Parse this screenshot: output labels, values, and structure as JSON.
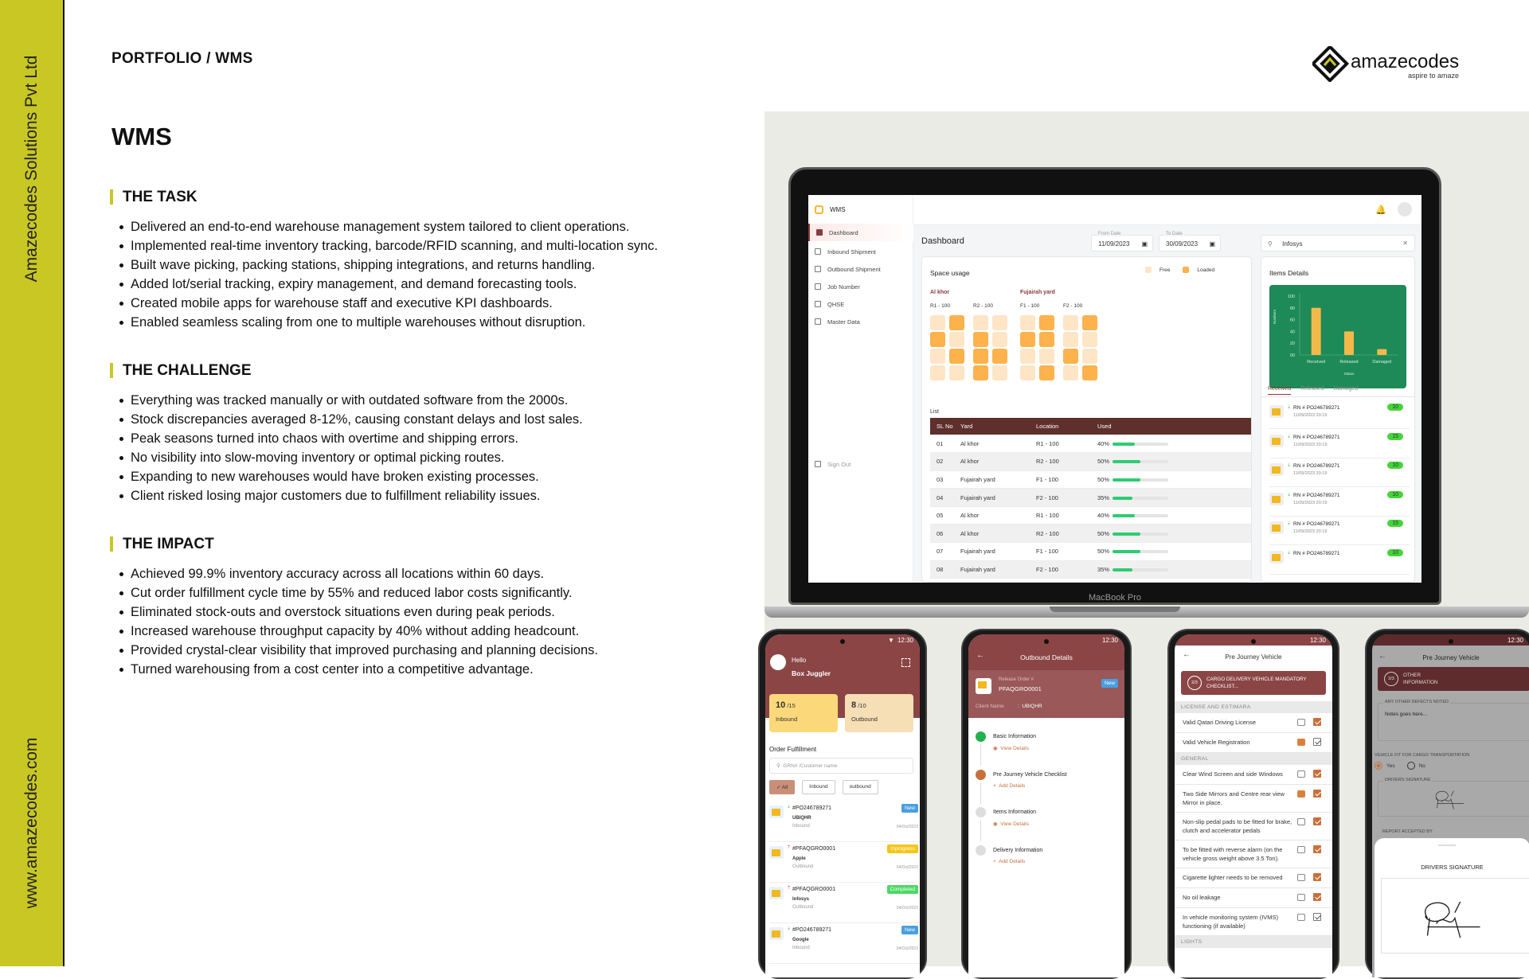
{
  "brand_side": {
    "company": "Amazecodes Solutions Pvt Ltd",
    "website": "www.amazecodes.com",
    "color": "#c8c723"
  },
  "breadcrumb": "PORTFOLIO / WMS",
  "title": "WMS",
  "logo": {
    "name": "amazecodes",
    "tagline": "aspire to amaze"
  },
  "sections": [
    {
      "heading": "THE TASK",
      "items": [
        "Delivered an end-to-end warehouse management system tailored to client operations.",
        "Implemented real-time inventory tracking, barcode/RFID scanning, and multi-location sync.",
        "Built wave picking, packing stations, shipping integrations, and returns handling.",
        "Added lot/serial tracking, expiry management, and demand forecasting tools.",
        "Created mobile apps for warehouse staff and executive KPI dashboards.",
        "Enabled seamless scaling from one to multiple warehouses without disruption."
      ]
    },
    {
      "heading": "THE CHALLENGE",
      "items": [
        "Everything was tracked manually or with outdated software from the 2000s.",
        "Stock discrepancies averaged 8-12%, causing constant delays and lost sales.",
        "Peak seasons turned into chaos with overtime and shipping errors.",
        "No visibility into slow-moving inventory or optimal picking routes.",
        "Expanding to new warehouses would have broken existing processes.",
        "Client risked losing major customers due to fulfillment reliability issues."
      ]
    },
    {
      "heading": "THE IMPACT",
      "items": [
        "Achieved 99.9% inventory accuracy across all locations within 60 days.",
        "Cut order fulfillment cycle time by 55% and reduced labor costs significantly.",
        "Eliminated stock-outs and overstock situations even during peak periods.",
        "Increased warehouse throughput capacity by 40% without adding headcount.",
        "Provided crystal-clear visibility that improved purchasing and planning decisions.",
        "Turned warehousing from a cost center into a competitive advantage."
      ]
    }
  ],
  "laptop_label": "MacBook Pro",
  "dashboard": {
    "app_name": "WMS",
    "nav": [
      {
        "label": "Dashboard",
        "icon": "dashboard-icon",
        "active": true
      },
      {
        "label": "Inbound Shipment",
        "icon": "inbound-icon"
      },
      {
        "label": "Outbound Shipment",
        "icon": "outbound-icon"
      },
      {
        "label": "Job Number",
        "icon": "briefcase-icon"
      },
      {
        "label": "QHSE",
        "icon": "grid-icon"
      },
      {
        "label": "Master Data",
        "icon": "database-icon"
      }
    ],
    "sign_out": "Sign Out",
    "heading": "Dashboard",
    "from_date": {
      "label": "From Date",
      "value": "11/09/2023"
    },
    "to_date": {
      "label": "To Date",
      "value": "30/09/2023"
    },
    "search_value": "Infosys",
    "space_usage": {
      "title": "Space usage",
      "legend": [
        "Free",
        "Loaded"
      ],
      "colors": {
        "free": "#fde5c6",
        "loaded": "#fdb24b"
      },
      "yards": [
        {
          "name": "Al khor",
          "groups": [
            {
              "label": "R1 - 100",
              "cells": [
                0,
                1,
                1,
                0,
                0,
                1,
                0,
                0
              ]
            },
            {
              "label": "R2 - 100",
              "cells": [
                0,
                0,
                1,
                0,
                1,
                1,
                1,
                0
              ]
            }
          ]
        },
        {
          "name": "Fujairah yard",
          "groups": [
            {
              "label": "F1 - 100",
              "cells": [
                0,
                1,
                1,
                1,
                0,
                0,
                0,
                1
              ]
            },
            {
              "label": "F2 - 100",
              "cells": [
                0,
                1,
                0,
                0,
                1,
                0,
                0,
                1
              ]
            }
          ]
        }
      ]
    },
    "list_label": "List",
    "table": {
      "columns": [
        "SL No",
        "Yard",
        "Location",
        "Used"
      ],
      "rows": [
        [
          "01",
          "Al khor",
          "R1 - 100",
          "40%"
        ],
        [
          "02",
          "Al khor",
          "R2 - 100",
          "50%"
        ],
        [
          "03",
          "Fujairah yard",
          "F1 - 100",
          "50%"
        ],
        [
          "04",
          "Fujairah yard",
          "F2 - 100",
          "35%"
        ],
        [
          "05",
          "Al khor",
          "R1 - 100",
          "40%"
        ],
        [
          "06",
          "Al khor",
          "R2 - 100",
          "50%"
        ],
        [
          "07",
          "Fujairah yard",
          "F1 - 100",
          "50%"
        ],
        [
          "08",
          "Fujairah yard",
          "F2 - 100",
          "35%"
        ]
      ]
    },
    "items_details": {
      "title": "Items Details",
      "tabs": [
        "Received",
        "Released",
        "Damaged"
      ],
      "items": [
        {
          "id": "RN # PO246789271",
          "date": "11/09/2023 20:19",
          "count": "10"
        },
        {
          "id": "RN # PO246789271",
          "date": "11/09/2023 20:19",
          "count": "15"
        },
        {
          "id": "RN # PO246789271",
          "date": "11/09/2023 20:19",
          "count": "10"
        },
        {
          "id": "RN # PO246789271",
          "date": "11/09/2023 20:19",
          "count": "10"
        },
        {
          "id": "RN # PO246789271",
          "date": "11/09/2023 20:19",
          "count": "15"
        },
        {
          "id": "RN # PO246789271",
          "date": "",
          "count": "10"
        }
      ]
    }
  },
  "chart_data": {
    "type": "bar",
    "categories": [
      "Received",
      "Released",
      "Damaged"
    ],
    "values": [
      80,
      40,
      10
    ],
    "xlabel": "Status",
    "ylabel": "Numbers",
    "ylim": [
      0,
      100
    ],
    "yticks": [
      "00",
      "20",
      "40",
      "60",
      "80",
      "100"
    ],
    "bar_color": "#f2b94a",
    "background": "#1e8a57"
  },
  "phone1": {
    "time": "12:30",
    "greeting": "Hello",
    "user": "Box Juggler",
    "inbound": {
      "count": "10",
      "total": "/15",
      "label": "Inbound"
    },
    "outbound": {
      "count": "8",
      "total": "/10",
      "label": "Outbound"
    },
    "section": "Order Fulfillment",
    "search_placeholder": "GRN# /Customer name",
    "filters": [
      "All",
      "Inbound",
      "outbound"
    ],
    "orders": [
      {
        "id": "#PO246789271",
        "client": "UBIQHR",
        "type": "Inbound",
        "status": "New",
        "date": "04/Oct/2023",
        "status_color": "#4a9fe0"
      },
      {
        "id": "#PFAQGRO0001",
        "client": "Apple",
        "type": "Outbound",
        "status": "Inprogress",
        "date": "04/Oct/2023",
        "status_color": "#f5c518"
      },
      {
        "id": "#PFAQGRO0001",
        "client": "Infosys",
        "type": "Outbound",
        "status": "Completed",
        "date": "04/Oct/2023",
        "status_color": "#4cd964"
      },
      {
        "id": "#PO246789271",
        "client": "Google",
        "type": "Inbound",
        "status": "New",
        "date": "04/Oct/2023",
        "status_color": "#4a9fe0"
      }
    ]
  },
  "phone2": {
    "time": "12:30",
    "title": "Outbound Details",
    "release_label": "Release Order #",
    "release_no": "PFAQGRO0001",
    "status": "New",
    "client_label": "Client Name",
    "client": "UBIQHR",
    "steps": [
      {
        "title": "Basic Information",
        "action": "View Details",
        "color": "#22b14c"
      },
      {
        "title": "Pre Journey Vehicle Checklist",
        "action": "Add Details",
        "color": "#c7703d"
      },
      {
        "title": "Items Information",
        "action": "View Details",
        "color": "#ddd"
      },
      {
        "title": "Delivery Information",
        "action": "Add Details",
        "color": "#ddd"
      }
    ]
  },
  "phone3": {
    "time": "12:30",
    "title": "Pre Journey Vehicle",
    "step": "2/3",
    "banner": "CARGO DELIVERY VEHICLE MANDATORY CHECKLIST...",
    "groups": [
      {
        "name": "LICENSE AND ESTIMARA",
        "items": [
          {
            "text": "Valid Qatari Driving License",
            "comment": false,
            "checked": true
          },
          {
            "text": "Valid Vehicle Registration",
            "comment": true,
            "checked": false
          }
        ]
      },
      {
        "name": "GENERAL",
        "items": [
          {
            "text": "Clear Wind Screen and side Windows",
            "comment": false,
            "checked": true
          },
          {
            "text": "Two Side Mirrors and Centre rear view Mirror in place.",
            "comment": true,
            "checked": true
          },
          {
            "text": "Non-slip pedal pads to be fitted for brake, clutch and accelerator pedals",
            "comment": false,
            "checked": true
          },
          {
            "text": "To be fitted with reverse alarm (on the vehicle gross weight above 3.5 Ton).",
            "comment": false,
            "checked": true
          },
          {
            "text": "Cigarette lighter needs to be removed",
            "comment": false,
            "checked": true
          },
          {
            "text": "No oil leakage",
            "comment": false,
            "checked": true
          },
          {
            "text": "In vehicle monitoring system (IVMS) functioning (if available)",
            "comment": false,
            "checked": false
          }
        ]
      },
      {
        "name": "LIGHTS",
        "items": []
      }
    ]
  },
  "phone4": {
    "time": "12:30",
    "title": "Pre Journey Vehicle",
    "step": "3/3",
    "banner": "OTHER INFORMATION",
    "defects_label": "ANY OTHER DEFECTS NOTED",
    "defects_value": "Notes goes here...",
    "fit_label": "VEHICLE FIT FOR CARGO TRANSPORTATION",
    "options": [
      "Yes",
      "No"
    ],
    "selected": "Yes",
    "signature_label": "DRIVERS SIGNATURE",
    "accepted_label": "REPORT ACCEPTED BY",
    "sheet_title": "DRIVERS SIGNATURE"
  }
}
